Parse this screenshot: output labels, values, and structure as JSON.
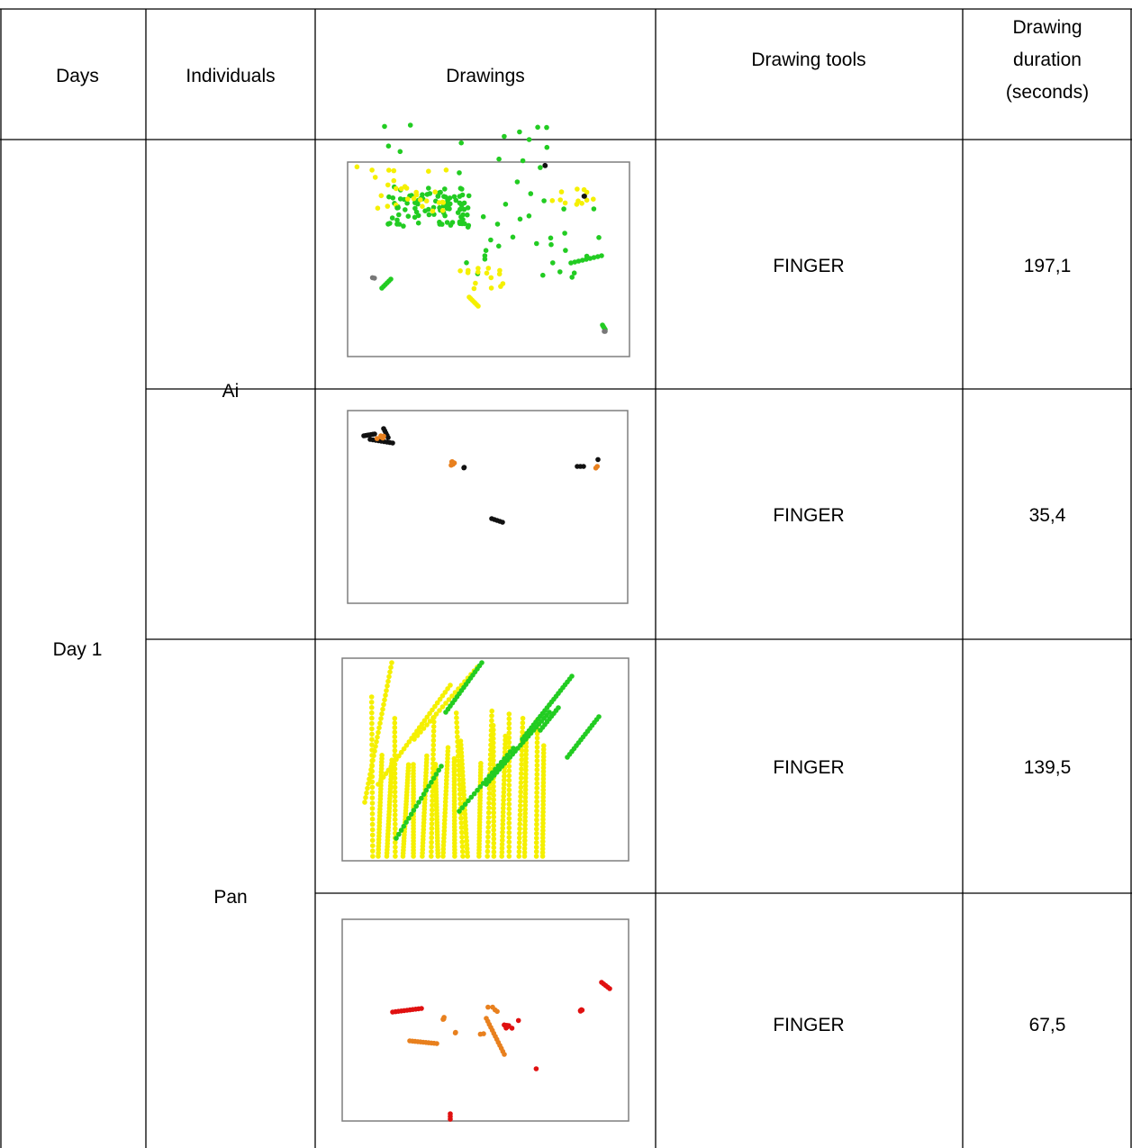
{
  "header": [
    "Days",
    "Individuals",
    "Drawings",
    "Drawing tools",
    "Drawing duration (seconds)"
  ],
  "table": {
    "day": "Day 1",
    "individuals": [
      "Ai",
      "Pan"
    ],
    "rows": [
      [
        "FINGER",
        "197,1"
      ],
      [
        "FINGER",
        "35,4"
      ],
      [
        "FINGER",
        "139,5"
      ],
      [
        "FINGER",
        "67,5"
      ]
    ]
  }
}
